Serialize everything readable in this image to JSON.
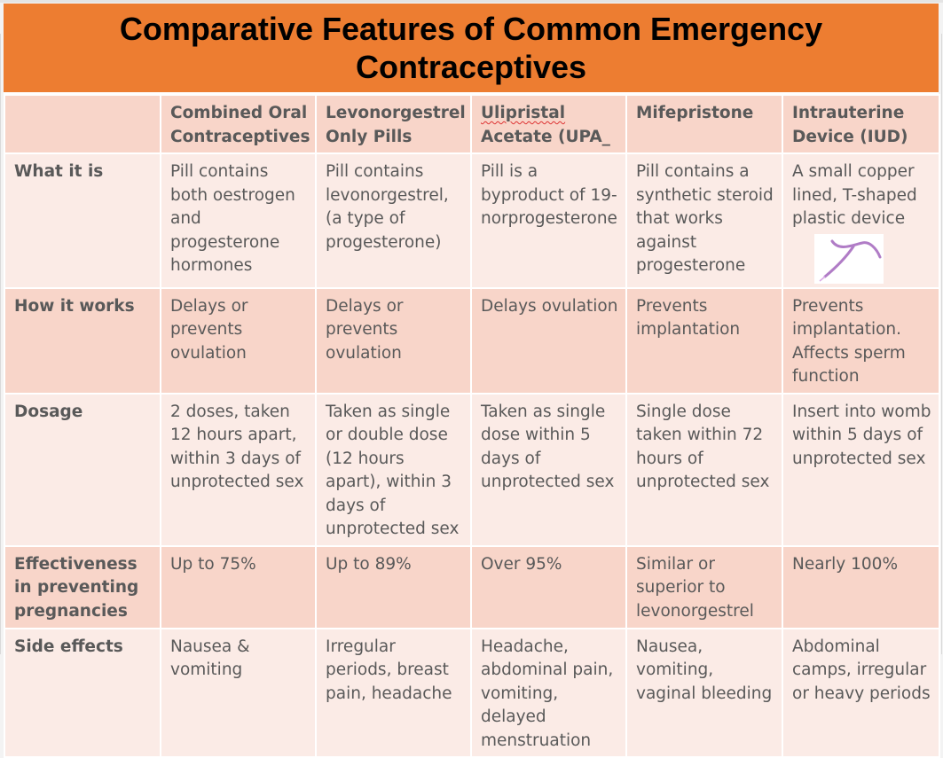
{
  "title": "Comparative Features of Common Emergency Contraceptives",
  "columns": [
    "",
    "Combined Oral Contraceptives",
    "Levonorgestrel Only Pills",
    "Ulipristal Acetate (UPA_",
    "Mifepristone",
    "Intrauterine Device (IUD)"
  ],
  "rows": [
    {
      "label": "What it is",
      "cells": [
        "Pill contains both oestrogen and progesterone hormones",
        "Pill contains levonorgestrel, (a type of progesterone)",
        "Pill is a byproduct of 19-norprogesterone",
        "Pill contains a synthetic steroid that works against progesterone",
        "A small copper lined, T-shaped plastic device"
      ]
    },
    {
      "label": "How it works",
      "cells": [
        "Delays or prevents ovulation",
        "Delays or prevents ovulation",
        "Delays ovulation",
        "Prevents implantation",
        "Prevents implantation. Affects sperm function"
      ]
    },
    {
      "label": "Dosage",
      "cells": [
        "2 doses, taken 12 hours apart, within 3 days of unprotected sex",
        "Taken as single or double dose (12 hours apart), within 3 days of unprotected sex",
        "Taken as single dose within 5 days of unprotected sex",
        "Single dose taken within 72 hours of unprotected sex",
        "Insert into womb within 5 days of unprotected sex"
      ]
    },
    {
      "label": "Effectiveness in preventing pregnancies",
      "cells": [
        "Up to 75%",
        "Up to 89%",
        "Over  95%",
        "Similar or superior to levonorgestrel",
        "Nearly 100%"
      ]
    },
    {
      "label": "Side effects",
      "cells": [
        "Nausea & vomiting",
        "Irregular periods, breast pain, headache",
        "Headache, abdominal pain, vomiting, delayed menstruation",
        "Nausea, vomiting, vaginal bleeding",
        "Abdominal camps, irregular or heavy periods"
      ]
    }
  ],
  "colors": {
    "title_bg": "#ed7d31",
    "row_dark": "#f8d5c9",
    "row_light": "#fbebe6",
    "body_text": "#595959"
  },
  "icons": {
    "iud": "iud-device-image"
  }
}
